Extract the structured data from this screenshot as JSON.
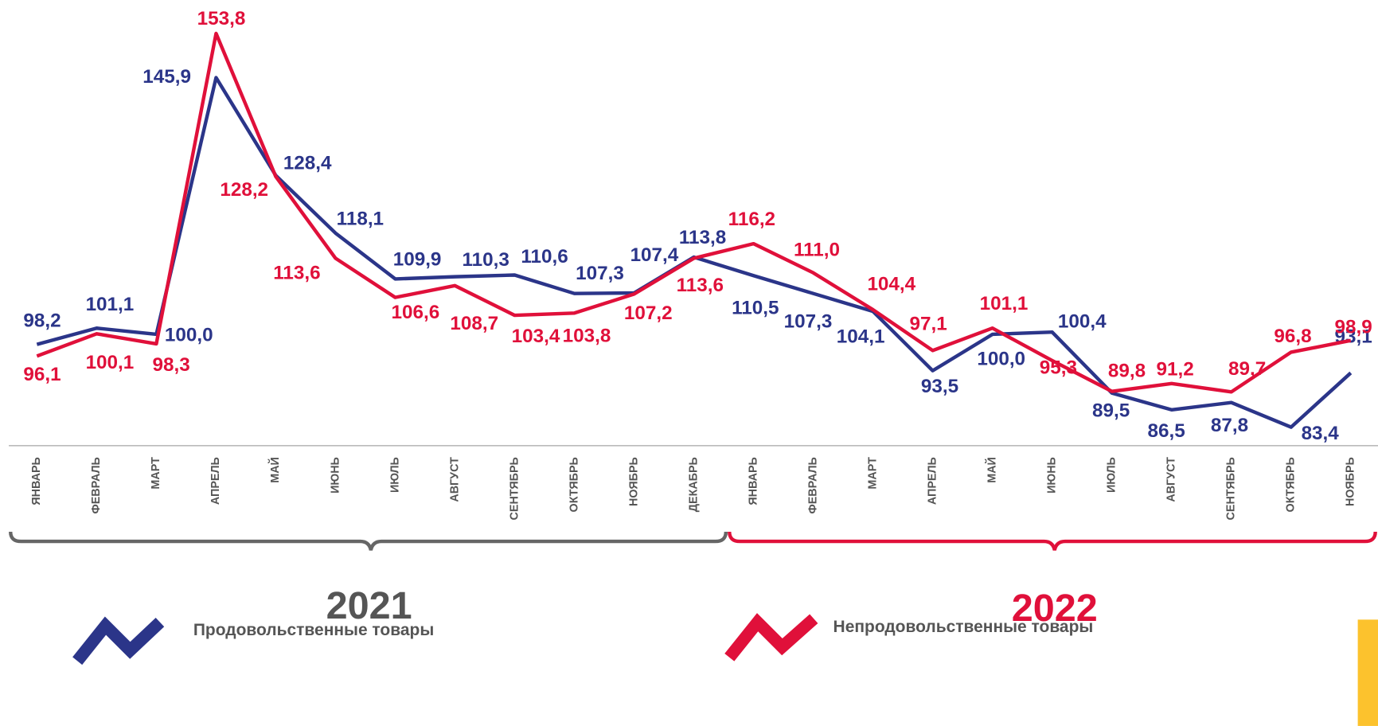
{
  "chart_data": {
    "type": "line",
    "categories": [
      "ЯНВАРЬ",
      "ФЕВРАЛЬ",
      "МАРТ",
      "АПРЕЛЬ",
      "МАЙ",
      "ИЮНЬ",
      "ИЮЛЬ",
      "АВГУСТ",
      "СЕНТЯБРЬ",
      "ОКТЯБРЬ",
      "НОЯБРЬ",
      "ДЕКАБРЬ",
      "ЯНВАРЬ",
      "ФЕВРАЛЬ",
      "МАРТ",
      "АПРЕЛЬ",
      "МАЙ",
      "ИЮНЬ",
      "ИЮЛЬ",
      "АВГУСТ",
      "СЕНТЯБРЬ",
      "ОКТЯБРЬ",
      "НОЯБРЬ"
    ],
    "series": [
      {
        "name": "Продовольственные товары",
        "color": "#2b3589",
        "values": [
          98.2,
          101.1,
          100.0,
          145.9,
          128.4,
          118.1,
          109.9,
          110.3,
          110.6,
          107.3,
          107.4,
          113.8,
          110.5,
          107.3,
          104.1,
          93.5,
          100.0,
          100.4,
          89.5,
          86.5,
          87.8,
          83.4,
          93.1
        ],
        "value_labels": [
          "98,2",
          "101,1",
          "100,0",
          "145,9",
          "128,4",
          "118,1",
          "109,9",
          "110,3",
          "110,6",
          "107,3",
          "107,4",
          "113,8",
          "110,5",
          "107,3",
          "104,1",
          "93,5",
          "100,0",
          "100,4",
          "89,5",
          "86,5",
          "87,8",
          "83,4",
          "93,1"
        ]
      },
      {
        "name": "Непродовольственные товары",
        "color": "#e0103a",
        "values": [
          96.1,
          100.1,
          98.3,
          153.8,
          128.2,
          113.6,
          106.6,
          108.7,
          103.4,
          103.8,
          107.2,
          113.6,
          116.2,
          111.0,
          104.4,
          97.1,
          101.1,
          95.3,
          89.8,
          91.2,
          89.7,
          96.8,
          98.9
        ],
        "value_labels": [
          "96,1",
          "100,1",
          "98,3",
          "153,8",
          "128,2",
          "113,6",
          "106,6",
          "108,7",
          "103,4",
          "103,8",
          "107,2",
          "113,6",
          "116,2",
          "111,0",
          "104,4",
          "97,1",
          "101,1",
          "95,3",
          "89,8",
          "91,2",
          "89,7",
          "96,8",
          "98,9"
        ]
      }
    ],
    "annotations": [
      "2021",
      "2022"
    ]
  }
}
